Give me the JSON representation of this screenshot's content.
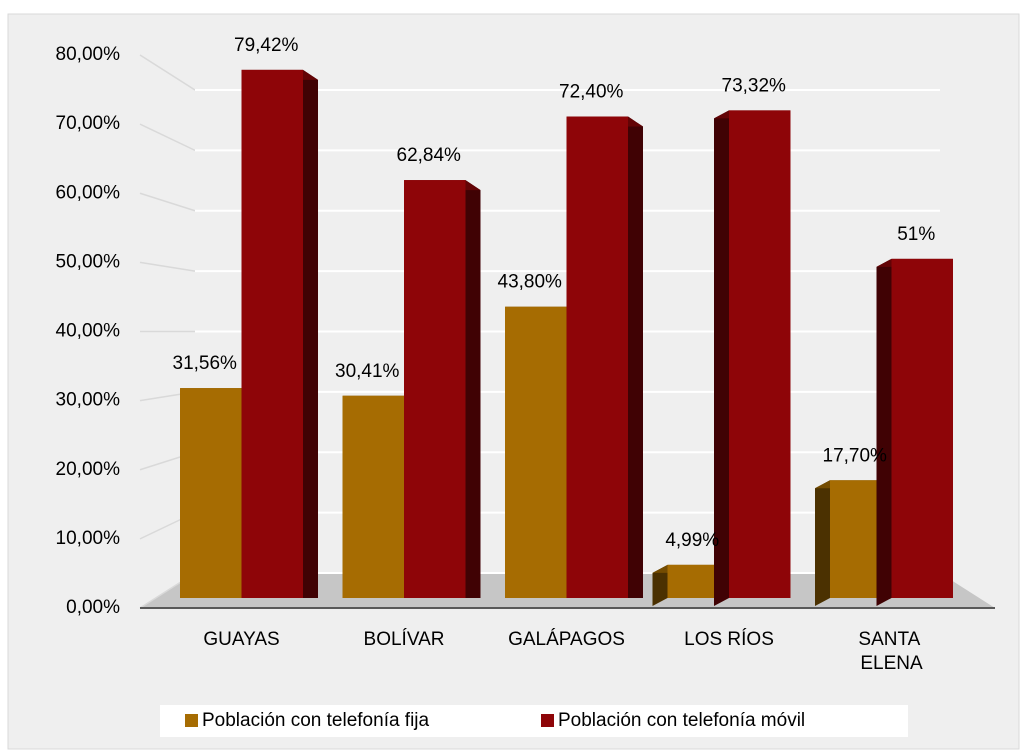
{
  "chart_data": {
    "type": "bar",
    "categories": [
      "GUAYAS",
      "BOLÍVAR",
      "GALÁPAGOS",
      "LOS RÍOS",
      "SANTA ELENA"
    ],
    "series": [
      {
        "name": "Población con telefonía fija",
        "color": "#a66c02",
        "values": [
          31.56,
          30.41,
          43.8,
          4.99,
          17.7
        ],
        "value_labels": [
          "31,56%",
          "30,41%",
          "43,80%",
          "4,99%",
          "17,70%"
        ]
      },
      {
        "name": "Población con telefonía móvil",
        "color": "#8e0508",
        "values": [
          79.42,
          62.84,
          72.4,
          73.32,
          51
        ],
        "value_labels": [
          "79,42%",
          "62,84%",
          "72,40%",
          "73,32%",
          "51%"
        ]
      }
    ],
    "ylim": [
      0,
      80
    ],
    "yticks": [
      {
        "value": 0,
        "label": "0,00%"
      },
      {
        "value": 10,
        "label": "10,00%"
      },
      {
        "value": 20,
        "label": "20,00%"
      },
      {
        "value": 30,
        "label": "30,00%"
      },
      {
        "value": 40,
        "label": "40,00%"
      },
      {
        "value": 50,
        "label": "50,00%"
      },
      {
        "value": 60,
        "label": "60,00%"
      },
      {
        "value": 70,
        "label": "70,00%"
      },
      {
        "value": 80,
        "label": "80,00%"
      }
    ],
    "grid": true,
    "legend": "bottom"
  }
}
